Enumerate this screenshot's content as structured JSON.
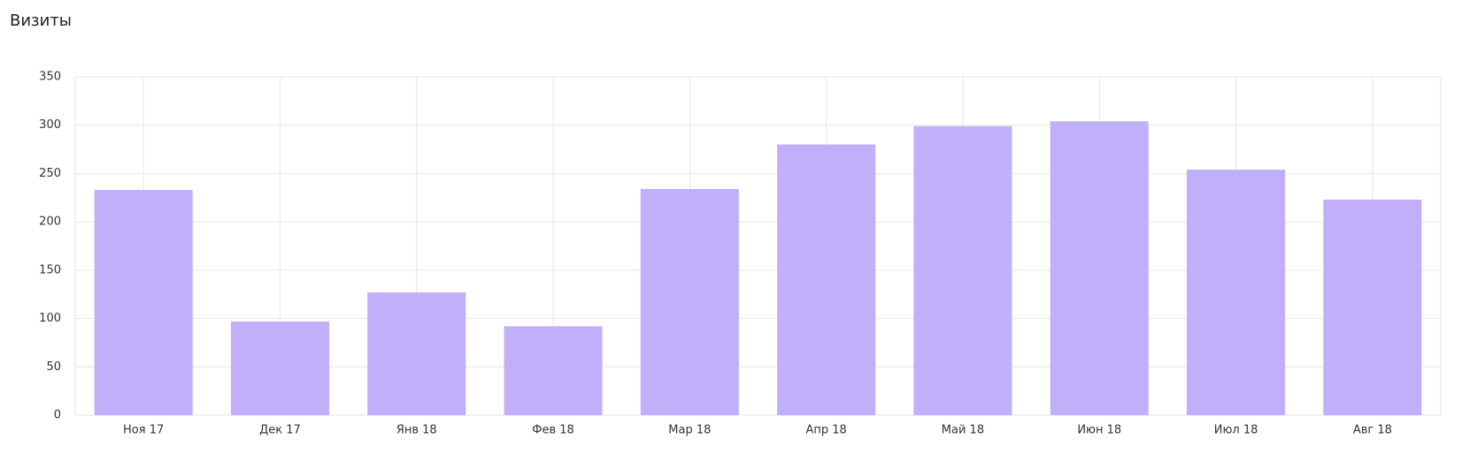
{
  "chart_data": {
    "type": "bar",
    "title": "Визиты",
    "categories": [
      "Ноя 17",
      "Дек 17",
      "Янв 18",
      "Фев 18",
      "Мар 18",
      "Апр 18",
      "Май 18",
      "Июн 18",
      "Июл 18",
      "Авг 18"
    ],
    "values": [
      233,
      97,
      127,
      92,
      234,
      280,
      299,
      304,
      254,
      223
    ],
    "color": "#c1b0f9",
    "ylim": [
      0,
      350
    ],
    "yticks": [
      0,
      50,
      100,
      150,
      200,
      250,
      300,
      350
    ],
    "grid": true
  }
}
